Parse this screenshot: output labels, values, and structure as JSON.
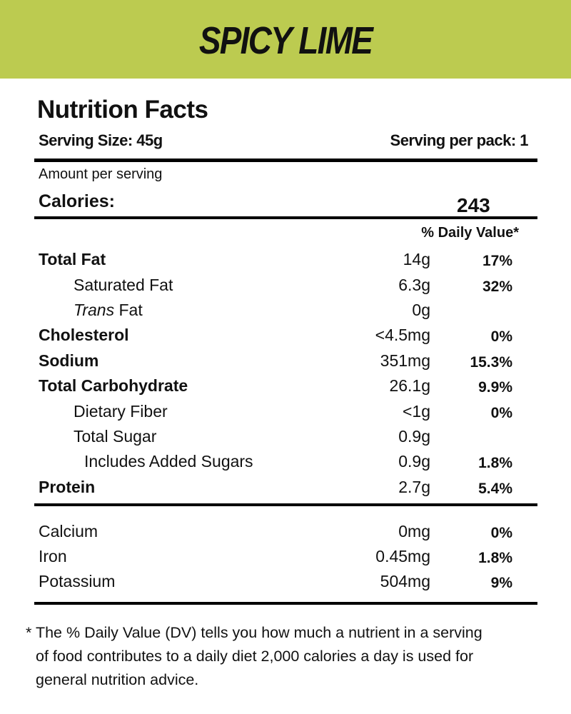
{
  "product_name": "SPICY LIME",
  "brand_color": "#bccb50",
  "title": "Nutrition Facts",
  "serving_size": "Serving Size: 45g",
  "servings_per_pack": "Serving per pack: 1",
  "amount_per_serving": "Amount per serving",
  "calories_label": "Calories:",
  "calories_value": "243",
  "dv_header": "% Daily Value*",
  "nutrients": [
    {
      "label": "Total Fat",
      "amount": "14g",
      "dv": "17%"
    },
    {
      "label": "Saturated Fat",
      "amount": "6.3g",
      "dv": "32%"
    },
    {
      "label_italic": "Trans",
      "label": " Fat",
      "amount": "0g",
      "dv": ""
    },
    {
      "label": "Cholesterol",
      "amount": "<4.5mg",
      "dv": "0%"
    },
    {
      "label": "Sodium",
      "amount": "351mg",
      "dv": "15.3%"
    },
    {
      "label": "Total Carbohydrate",
      "amount": "26.1g",
      "dv": "9.9%"
    },
    {
      "label": "Dietary Fiber",
      "amount": "<1g",
      "dv": "0%"
    },
    {
      "label": "Total Sugar",
      "amount": "0.9g",
      "dv": ""
    },
    {
      "label": "Includes Added Sugars",
      "amount": "0.9g",
      "dv": "1.8%"
    },
    {
      "label": "Protein",
      "amount": "2.7g",
      "dv": "5.4%"
    }
  ],
  "minerals": [
    {
      "label": "Calcium",
      "amount": "0mg",
      "dv": "0%"
    },
    {
      "label": "Iron",
      "amount": "0.45mg",
      "dv": "1.8%"
    },
    {
      "label": "Potassium",
      "amount": "504mg",
      "dv": "9%"
    }
  ],
  "footnote": [
    "* The % Daily Value (DV) tells you how much a nutrient in a serving",
    "of food contributes to a daily diet 2,000 calories a day  is used for",
    "general nutrition advice."
  ]
}
